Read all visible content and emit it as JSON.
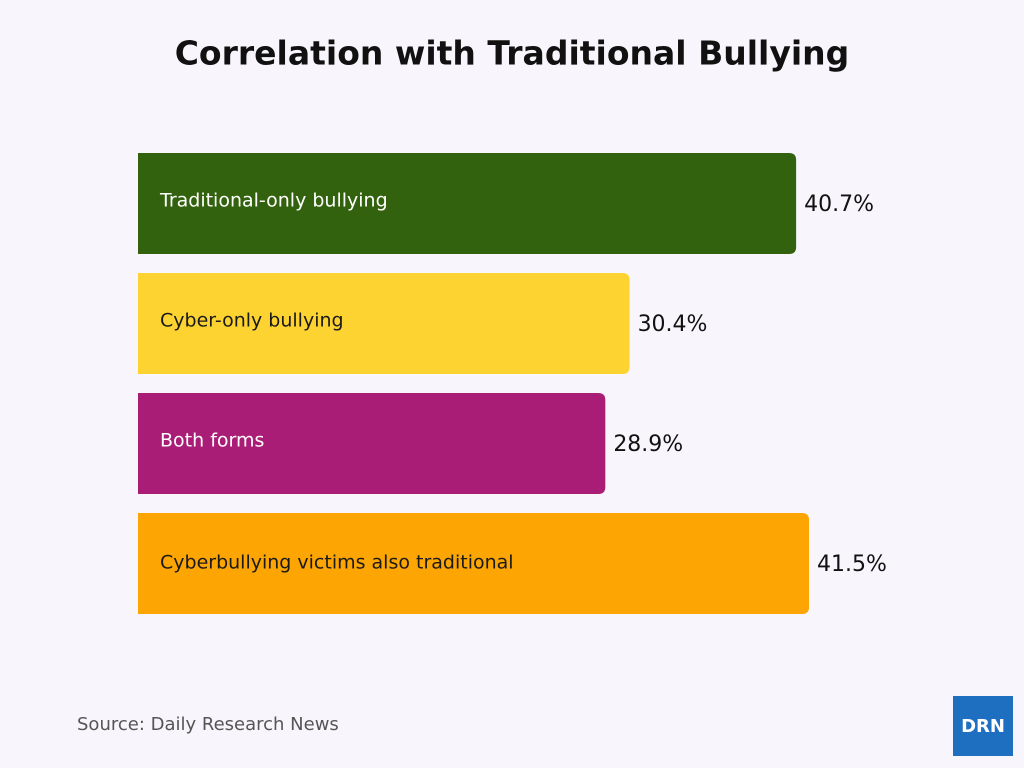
{
  "chart_data": {
    "type": "bar",
    "orientation": "horizontal",
    "title": "Correlation with Traditional Bullying",
    "categories": [
      "Traditional-only bullying",
      "Cyber-only bullying",
      "Both forms",
      "Cyberbullying victims also traditional"
    ],
    "values": [
      40.7,
      30.4,
      28.9,
      41.5
    ],
    "value_labels": [
      "40.7%",
      "30.4%",
      "28.9%",
      "41.5%"
    ],
    "colors": [
      "#33620f",
      "#fdd331",
      "#a91d77",
      "#fca503"
    ],
    "source": "Source: Daily Research News",
    "logo": "DRN"
  }
}
